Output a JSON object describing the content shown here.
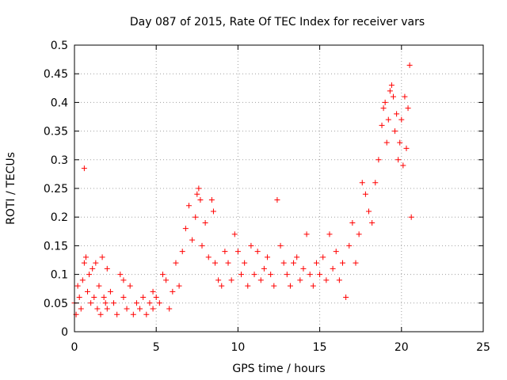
{
  "chart_data": {
    "type": "scatter",
    "title": "Day 087 of 2015, Rate Of TEC Index for receiver vars",
    "xlabel": "GPS time / hours",
    "ylabel": "ROTI / TECUs",
    "xlim": [
      0,
      25
    ],
    "ylim": [
      0,
      0.5
    ],
    "x_ticks": [
      0,
      5,
      10,
      15,
      20,
      25
    ],
    "x_tick_labels": [
      "0",
      "5",
      "10",
      "15",
      "20",
      "25"
    ],
    "y_ticks": [
      0,
      0.05,
      0.1,
      0.15,
      0.2,
      0.25,
      0.3,
      0.35,
      0.4,
      0.45,
      0.5
    ],
    "y_tick_labels": [
      "0",
      "0.05",
      "0.1",
      "0.15",
      "0.2",
      "0.25",
      "0.3",
      "0.35",
      "0.4",
      "0.45",
      "0.5"
    ],
    "grid": true,
    "marker": "+",
    "color": "#ff0000",
    "series": [
      {
        "name": "ROTI",
        "points": [
          [
            0.0,
            0.05
          ],
          [
            0.1,
            0.03
          ],
          [
            0.2,
            0.08
          ],
          [
            0.3,
            0.06
          ],
          [
            0.4,
            0.04
          ],
          [
            0.5,
            0.09
          ],
          [
            0.6,
            0.12
          ],
          [
            0.7,
            0.13
          ],
          [
            0.8,
            0.07
          ],
          [
            0.9,
            0.1
          ],
          [
            1.0,
            0.05
          ],
          [
            1.1,
            0.11
          ],
          [
            1.2,
            0.06
          ],
          [
            1.3,
            0.12
          ],
          [
            1.4,
            0.04
          ],
          [
            1.5,
            0.08
          ],
          [
            1.6,
            0.03
          ],
          [
            1.7,
            0.13
          ],
          [
            1.8,
            0.06
          ],
          [
            1.9,
            0.05
          ],
          [
            2.0,
            0.04
          ],
          [
            2.2,
            0.07
          ],
          [
            2.4,
            0.05
          ],
          [
            2.6,
            0.03
          ],
          [
            2.8,
            0.1
          ],
          [
            3.0,
            0.06
          ],
          [
            3.2,
            0.04
          ],
          [
            3.4,
            0.08
          ],
          [
            3.6,
            0.03
          ],
          [
            3.8,
            0.05
          ],
          [
            4.0,
            0.04
          ],
          [
            4.2,
            0.06
          ],
          [
            4.4,
            0.03
          ],
          [
            4.6,
            0.05
          ],
          [
            4.8,
            0.04
          ],
          [
            5.0,
            0.06
          ],
          [
            5.2,
            0.05
          ],
          [
            5.4,
            0.1
          ],
          [
            5.6,
            0.09
          ],
          [
            5.8,
            0.04
          ],
          [
            6.0,
            0.07
          ],
          [
            6.2,
            0.12
          ],
          [
            6.4,
            0.08
          ],
          [
            6.6,
            0.14
          ],
          [
            6.8,
            0.18
          ],
          [
            7.0,
            0.22
          ],
          [
            7.2,
            0.16
          ],
          [
            7.4,
            0.2
          ],
          [
            7.5,
            0.24
          ],
          [
            7.6,
            0.25
          ],
          [
            7.7,
            0.23
          ],
          [
            7.8,
            0.15
          ],
          [
            8.0,
            0.19
          ],
          [
            8.2,
            0.13
          ],
          [
            8.4,
            0.23
          ],
          [
            8.5,
            0.21
          ],
          [
            8.6,
            0.12
          ],
          [
            8.8,
            0.09
          ],
          [
            9.0,
            0.08
          ],
          [
            9.2,
            0.14
          ],
          [
            9.4,
            0.12
          ],
          [
            9.6,
            0.09
          ],
          [
            9.8,
            0.17
          ],
          [
            10.0,
            0.14
          ],
          [
            10.2,
            0.1
          ],
          [
            10.4,
            0.12
          ],
          [
            10.6,
            0.08
          ],
          [
            10.8,
            0.15
          ],
          [
            11.0,
            0.1
          ],
          [
            11.2,
            0.14
          ],
          [
            11.4,
            0.09
          ],
          [
            11.6,
            0.11
          ],
          [
            11.8,
            0.13
          ],
          [
            12.0,
            0.1
          ],
          [
            12.2,
            0.08
          ],
          [
            12.4,
            0.23
          ],
          [
            12.6,
            0.15
          ],
          [
            12.8,
            0.12
          ],
          [
            13.0,
            0.1
          ],
          [
            13.2,
            0.08
          ],
          [
            13.4,
            0.12
          ],
          [
            13.6,
            0.13
          ],
          [
            13.8,
            0.09
          ],
          [
            14.0,
            0.11
          ],
          [
            14.2,
            0.17
          ],
          [
            14.4,
            0.1
          ],
          [
            14.6,
            0.08
          ],
          [
            14.8,
            0.12
          ],
          [
            15.0,
            0.1
          ],
          [
            15.2,
            0.13
          ],
          [
            15.4,
            0.09
          ],
          [
            15.6,
            0.17
          ],
          [
            15.8,
            0.11
          ],
          [
            16.0,
            0.14
          ],
          [
            16.2,
            0.09
          ],
          [
            16.4,
            0.12
          ],
          [
            16.6,
            0.06
          ],
          [
            16.8,
            0.15
          ],
          [
            17.0,
            0.19
          ],
          [
            17.2,
            0.12
          ],
          [
            17.4,
            0.17
          ],
          [
            17.6,
            0.26
          ],
          [
            17.8,
            0.24
          ],
          [
            18.0,
            0.21
          ],
          [
            18.2,
            0.19
          ],
          [
            18.4,
            0.26
          ],
          [
            18.6,
            0.3
          ],
          [
            18.8,
            0.36
          ],
          [
            18.9,
            0.39
          ],
          [
            19.0,
            0.4
          ],
          [
            19.1,
            0.33
          ],
          [
            19.2,
            0.37
          ],
          [
            19.3,
            0.42
          ],
          [
            19.4,
            0.43
          ],
          [
            19.5,
            0.41
          ],
          [
            19.6,
            0.35
          ],
          [
            19.7,
            0.38
          ],
          [
            19.8,
            0.3
          ],
          [
            19.9,
            0.33
          ],
          [
            20.0,
            0.37
          ],
          [
            20.1,
            0.29
          ],
          [
            20.2,
            0.41
          ],
          [
            20.3,
            0.32
          ],
          [
            20.4,
            0.39
          ],
          [
            20.5,
            0.465
          ],
          [
            20.6,
            0.2
          ],
          [
            0.6,
            0.285
          ],
          [
            2.0,
            0.11
          ],
          [
            3.0,
            0.09
          ],
          [
            4.8,
            0.07
          ]
        ]
      }
    ]
  }
}
